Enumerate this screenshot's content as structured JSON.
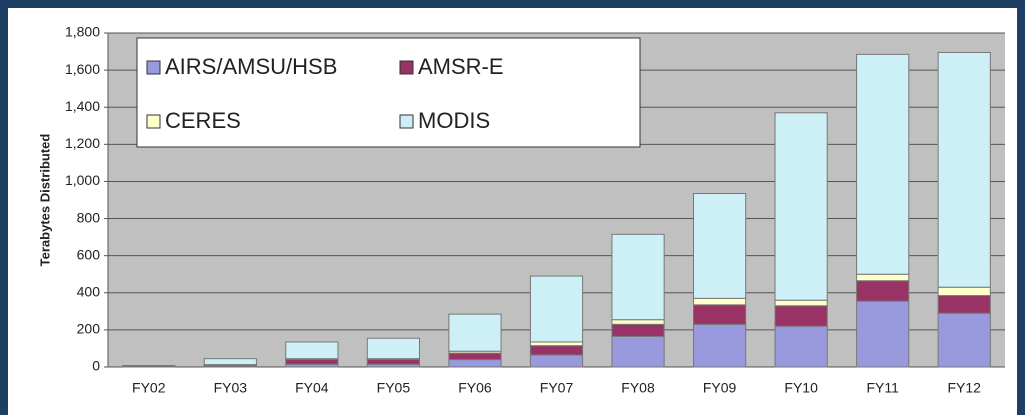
{
  "chart_data": {
    "type": "stacked_bar",
    "y_label": "Terabytes Distributed",
    "categories": [
      "FY02",
      "FY03",
      "FY04",
      "FY05",
      "FY06",
      "FY07",
      "FY08",
      "FY09",
      "FY10",
      "FY11",
      "FY12"
    ],
    "series": [
      {
        "name": "AIRS/AMSU/HSB",
        "color": "#9999dd",
        "values": [
          2,
          5,
          15,
          15,
          40,
          65,
          165,
          230,
          220,
          355,
          290
        ]
      },
      {
        "name": "AMSR-E",
        "color": "#993366",
        "values": [
          3,
          5,
          25,
          25,
          35,
          50,
          65,
          105,
          110,
          110,
          95
        ]
      },
      {
        "name": "CERES",
        "color": "#ffffcc",
        "values": [
          1,
          3,
          5,
          5,
          10,
          20,
          25,
          35,
          30,
          35,
          45
        ]
      },
      {
        "name": "MODIS",
        "color": "#cdf0f6",
        "values": [
          2,
          32,
          90,
          110,
          200,
          355,
          460,
          565,
          1010,
          1185,
          1265
        ]
      }
    ],
    "ylim": [
      0,
      1800
    ],
    "yticks": [
      0,
      200,
      400,
      600,
      800,
      {
        "value": 1000,
        "label": "1,000"
      },
      {
        "value": 1200,
        "label": "1,200"
      },
      {
        "value": 1400,
        "label": "1,400"
      },
      {
        "value": 1600,
        "label": "1,600"
      },
      {
        "value": 1800,
        "label": "1,800"
      }
    ],
    "grid": true,
    "legend": "upper left"
  }
}
